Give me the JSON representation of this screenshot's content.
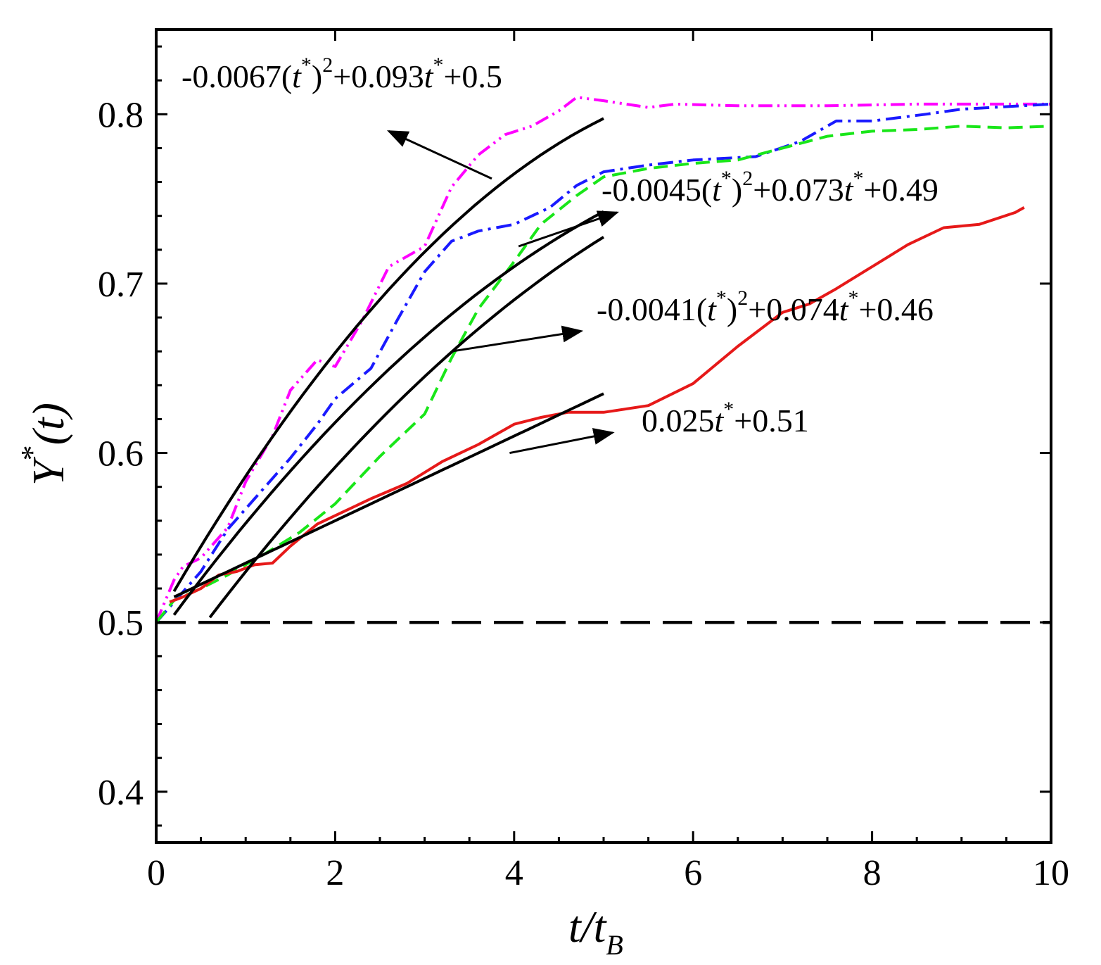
{
  "chart_data": {
    "type": "line",
    "xlabel": {
      "main": "t/t",
      "sub": "B"
    },
    "ylabel": {
      "main": "Y",
      "sup": "*",
      "tail": "(t)"
    },
    "xlim": [
      0,
      10
    ],
    "ylim": [
      0.37,
      0.85
    ],
    "xticks": [
      0,
      2,
      4,
      6,
      8,
      10
    ],
    "xtick_labels": [
      "0",
      "2",
      "4",
      "6",
      "8",
      "10"
    ],
    "yticks": [
      0.4,
      0.5,
      0.6,
      0.7,
      0.8
    ],
    "ytick_labels": [
      "0.4",
      "0.5",
      "0.6",
      "0.7",
      "0.8"
    ],
    "grid": false,
    "series": [
      {
        "name": "magenta",
        "color": "#ff00ff",
        "style": "dash-dot-dot",
        "x": [
          0,
          0.2,
          0.3,
          0.5,
          0.8,
          1.0,
          1.3,
          1.5,
          1.8,
          2.0,
          2.3,
          2.6,
          3.0,
          3.3,
          3.6,
          3.9,
          4.2,
          4.5,
          4.7,
          5.0,
          5.5,
          5.8,
          6.5,
          7.5,
          8.5,
          9.0,
          10.0
        ],
        "y": [
          0.5,
          0.525,
          0.533,
          0.538,
          0.556,
          0.583,
          0.61,
          0.637,
          0.655,
          0.651,
          0.678,
          0.71,
          0.722,
          0.757,
          0.776,
          0.788,
          0.793,
          0.802,
          0.81,
          0.808,
          0.804,
          0.806,
          0.805,
          0.805,
          0.806,
          0.806,
          0.806
        ]
      },
      {
        "name": "blue",
        "color": "#1a1aff",
        "style": "dash-dot",
        "x": [
          0,
          0.2,
          0.5,
          0.8,
          1.1,
          1.5,
          1.8,
          2.0,
          2.4,
          2.7,
          3.0,
          3.3,
          3.6,
          4.0,
          4.4,
          4.7,
          5.0,
          5.5,
          6.0,
          6.7,
          7.2,
          7.6,
          8.0,
          8.6,
          9.0,
          10.0
        ],
        "y": [
          0.5,
          0.512,
          0.53,
          0.555,
          0.573,
          0.597,
          0.617,
          0.632,
          0.65,
          0.679,
          0.707,
          0.725,
          0.731,
          0.735,
          0.745,
          0.758,
          0.766,
          0.77,
          0.773,
          0.775,
          0.784,
          0.796,
          0.796,
          0.8,
          0.803,
          0.806
        ]
      },
      {
        "name": "green",
        "color": "#19e619",
        "style": "dashed",
        "x": [
          0,
          0.2,
          0.5,
          0.8,
          1.2,
          1.6,
          2.0,
          2.5,
          3.0,
          3.3,
          3.6,
          4.0,
          4.3,
          4.7,
          5.0,
          5.5,
          6.0,
          6.5,
          7.0,
          7.5,
          8.0,
          8.5,
          9.0,
          9.5,
          10.0
        ],
        "y": [
          0.5,
          0.513,
          0.52,
          0.528,
          0.54,
          0.553,
          0.57,
          0.598,
          0.623,
          0.656,
          0.685,
          0.713,
          0.735,
          0.752,
          0.763,
          0.768,
          0.771,
          0.773,
          0.78,
          0.787,
          0.79,
          0.791,
          0.793,
          0.792,
          0.793
        ]
      },
      {
        "name": "red",
        "color": "#e61919",
        "style": "solid",
        "x": [
          0.15,
          0.3,
          0.5,
          0.7,
          0.9,
          1.1,
          1.3,
          1.5,
          1.8,
          2.0,
          2.4,
          2.8,
          3.2,
          3.6,
          4.0,
          4.3,
          4.6,
          5.0,
          5.5,
          6.0,
          6.5,
          7.0,
          7.3,
          7.6,
          8.0,
          8.4,
          8.8,
          9.2,
          9.6,
          9.7
        ],
        "y": [
          0.512,
          0.515,
          0.52,
          0.528,
          0.53,
          0.534,
          0.535,
          0.545,
          0.558,
          0.563,
          0.573,
          0.582,
          0.595,
          0.605,
          0.617,
          0.621,
          0.624,
          0.624,
          0.628,
          0.641,
          0.663,
          0.683,
          0.688,
          0.697,
          0.71,
          0.723,
          0.733,
          0.735,
          0.742,
          0.745
        ]
      }
    ],
    "fits": [
      {
        "label": "-0.0067(t*)²+0.093t*+0.5",
        "a": -0.0067,
        "b": 0.093,
        "c": 0.5,
        "x_range": [
          0.2,
          5.0
        ]
      },
      {
        "label": "-0.0045(t*)²+0.073t*+0.49",
        "a": -0.0045,
        "b": 0.073,
        "c": 0.49,
        "x_range": [
          0.2,
          5.0
        ]
      },
      {
        "label": "-0.0041(t*)²+0.074t*+0.46",
        "a": -0.0041,
        "b": 0.074,
        "c": 0.46,
        "x_range": [
          0.6,
          5.0
        ]
      },
      {
        "label": "0.025t*+0.51",
        "a": 0,
        "b": 0.025,
        "c": 0.51,
        "x_range": [
          0.2,
          5.0
        ]
      }
    ],
    "reference_line": {
      "y": 0.5,
      "style": "long-dash",
      "color": "#000000"
    },
    "annotations": [
      {
        "id": "fit1",
        "parts": [
          [
            "-0.0067(",
            ""
          ],
          [
            "t",
            "i"
          ],
          [
            "*",
            "sup"
          ],
          [
            ")",
            ""
          ],
          [
            "2",
            "sup"
          ],
          [
            "+0.093",
            ""
          ],
          [
            "t",
            "i"
          ],
          [
            "*",
            "sup"
          ],
          [
            "+0.5",
            ""
          ]
        ]
      },
      {
        "id": "fit2",
        "parts": [
          [
            "-0.0045(",
            ""
          ],
          [
            "t",
            "i"
          ],
          [
            "*",
            "sup"
          ],
          [
            ")",
            ""
          ],
          [
            "2",
            "sup"
          ],
          [
            "+0.073",
            ""
          ],
          [
            "t",
            "i"
          ],
          [
            "*",
            "sup"
          ],
          [
            "+0.49",
            ""
          ]
        ]
      },
      {
        "id": "fit3",
        "parts": [
          [
            "-0.0041(",
            ""
          ],
          [
            "t",
            "i"
          ],
          [
            "*",
            "sup"
          ],
          [
            ")",
            ""
          ],
          [
            "2",
            "sup"
          ],
          [
            "+0.074",
            ""
          ],
          [
            "t",
            "i"
          ],
          [
            "*",
            "sup"
          ],
          [
            "+0.46",
            ""
          ]
        ]
      },
      {
        "id": "fit4",
        "parts": [
          [
            "0.025",
            ""
          ],
          [
            "t",
            "i"
          ],
          [
            "*",
            "sup"
          ],
          [
            "+0.51",
            ""
          ]
        ]
      }
    ],
    "arrows": [
      {
        "id": "arrow-fit1",
        "from": [
          3.75,
          0.762
        ],
        "to": [
          2.6,
          0.79
        ]
      },
      {
        "id": "arrow-fit2",
        "from": [
          4.05,
          0.722
        ],
        "to": [
          5.15,
          0.742
        ]
      },
      {
        "id": "arrow-fit3",
        "from": [
          3.3,
          0.66
        ],
        "to": [
          4.75,
          0.672
        ]
      },
      {
        "id": "arrow-fit4",
        "from": [
          3.95,
          0.6
        ],
        "to": [
          5.1,
          0.612
        ]
      }
    ]
  }
}
